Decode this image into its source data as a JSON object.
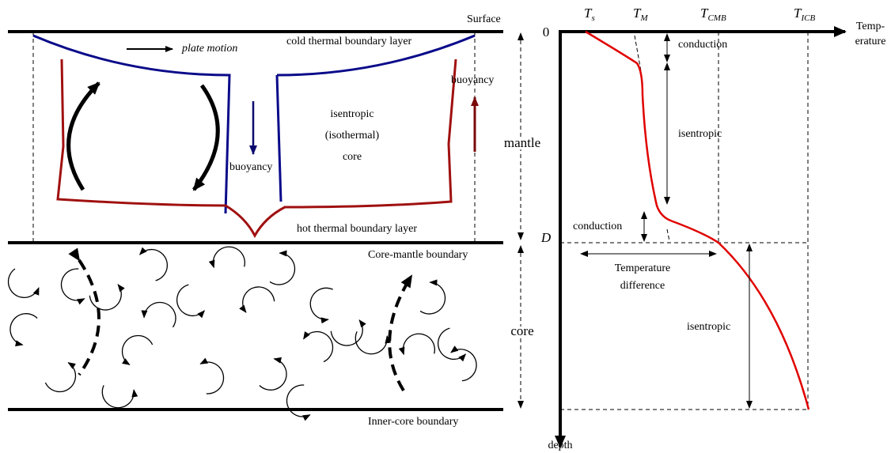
{
  "left_panel": {
    "surface": "Surface",
    "plate_motion": "plate motion",
    "cold_layer": "cold thermal boundary layer",
    "buoyancy_down": "buoyancy",
    "buoyancy_up": "buoyancy",
    "core_label": [
      "isentropic",
      "(isothermal)",
      "core"
    ],
    "hot_layer": "hot thermal boundary layer",
    "cmb": "Core-mantle boundary",
    "icb": "Inner-core boundary",
    "mantle": "mantle",
    "core": "core"
  },
  "right_panel": {
    "temperatures": [
      {
        "symbol": "T",
        "subscript": "s"
      },
      {
        "symbol": "T",
        "subscript": "M"
      },
      {
        "symbol": "T",
        "subscript": "CMB"
      },
      {
        "symbol": "T",
        "subscript": "ICB"
      }
    ],
    "x_axis_label": [
      "Temp-",
      "erature"
    ],
    "y_axis_label": "depth",
    "depth_zero": "0",
    "depth_d": "D",
    "conduction_top": "conduction",
    "isentropic_mantle": "isentropic",
    "conduction_bottom": "conduction",
    "temperature_difference": [
      "Temperature",
      "difference"
    ],
    "isentropic_core": "isentropic"
  }
}
